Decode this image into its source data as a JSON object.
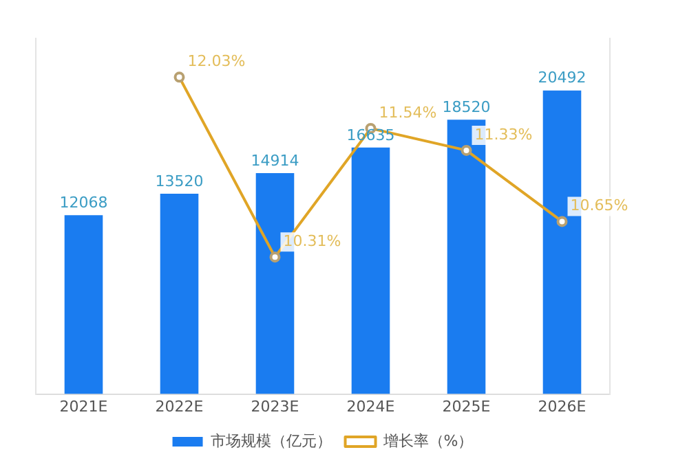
{
  "chart_data": {
    "type": "bar",
    "categories": [
      "2021E",
      "2022E",
      "2023E",
      "2024E",
      "2025E",
      "2026E"
    ],
    "series": [
      {
        "name": "市场规模（亿元）",
        "color": "#1a7cf0",
        "values": [
          12068,
          13520,
          14914,
          16635,
          18520,
          20492
        ]
      },
      {
        "name": "增长率（%）",
        "type": "line",
        "axis": "y2",
        "color": "#e0a526",
        "values": [
          null,
          12.03,
          10.31,
          11.54,
          11.33,
          10.65
        ],
        "value_labels": [
          null,
          "12.03%",
          "10.31%",
          "11.54%",
          "11.33%",
          "10.65%"
        ]
      }
    ],
    "data_labels": true,
    "ylim": [
      0,
      24000
    ],
    "y2lim": [
      9,
      12.4
    ],
    "tick_labels": "x",
    "grid": false,
    "legend": "bottom",
    "marker": "circle"
  }
}
